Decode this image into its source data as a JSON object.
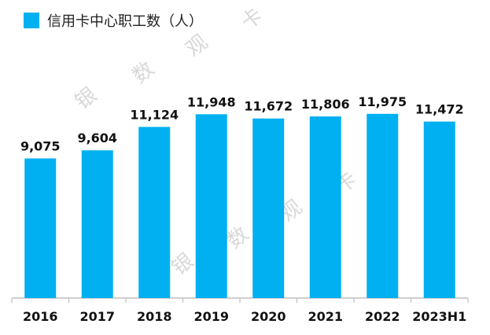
{
  "legend": {
    "label": "信用卡中心职工数（人）"
  },
  "watermarks": [
    {
      "text": "银"
    },
    {
      "text": "数"
    },
    {
      "text": "观"
    },
    {
      "text": "卡"
    },
    {
      "text": "银"
    },
    {
      "text": "数"
    },
    {
      "text": "观"
    },
    {
      "text": "卡"
    }
  ],
  "colors": {
    "bar": "#00b0f0",
    "axis": "#bfbfbf",
    "text": "#111111"
  },
  "chart_data": {
    "type": "bar",
    "categories": [
      "2016",
      "2017",
      "2018",
      "2019",
      "2020",
      "2021",
      "2022",
      "2023H1"
    ],
    "series": [
      {
        "name": "信用卡中心职工数（人）",
        "values": [
          9075,
          9604,
          11124,
          11948,
          11672,
          11806,
          11975,
          11472
        ],
        "labels": [
          "9,075",
          "9,604",
          "11,124",
          "11,948",
          "11,672",
          "11,806",
          "11,975",
          "11,472"
        ]
      }
    ],
    "legend_position": "top-left",
    "grid": false
  }
}
